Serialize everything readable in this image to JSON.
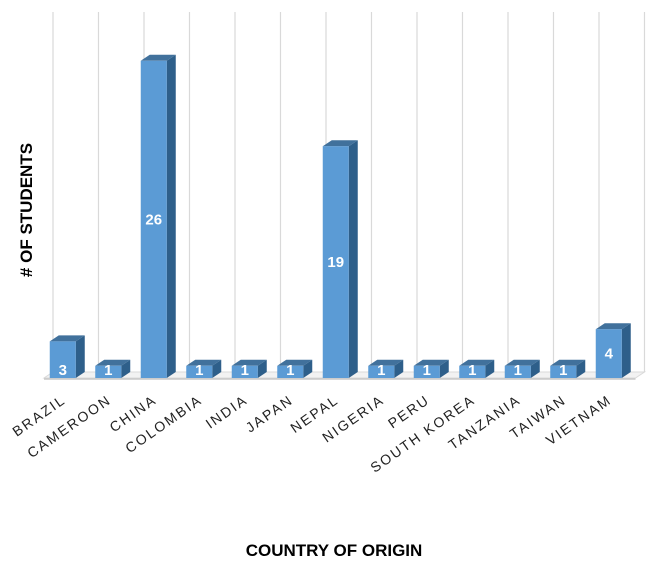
{
  "chart_data": {
    "type": "bar",
    "categories": [
      "BRAZIL",
      "CAMEROON",
      "CHINA",
      "COLOMBIA",
      "INDIA",
      "JAPAN",
      "NEPAL",
      "NIGERIA",
      "PERU",
      "SOUTH KOREA",
      "TANZANIA",
      "TAIWAN",
      "VIETNAM"
    ],
    "values": [
      3,
      1,
      26,
      1,
      1,
      1,
      19,
      1,
      1,
      1,
      1,
      1,
      4
    ],
    "data_labels": [
      "3",
      "1",
      "26",
      "1",
      "1",
      "1",
      "19",
      "1",
      "1",
      "1",
      "1",
      "1",
      "4"
    ],
    "xlabel": "COUNTRY OF ORIGIN",
    "ylabel": "# OF STUDENTS",
    "ylim": [
      0,
      30
    ],
    "grid": "vertical",
    "style": "3d-column",
    "colors": {
      "bar_front": "#5b9bd5",
      "bar_side": "#2e5f8a",
      "bar_top": "#41719c",
      "grid": "#d9d9d9"
    }
  }
}
